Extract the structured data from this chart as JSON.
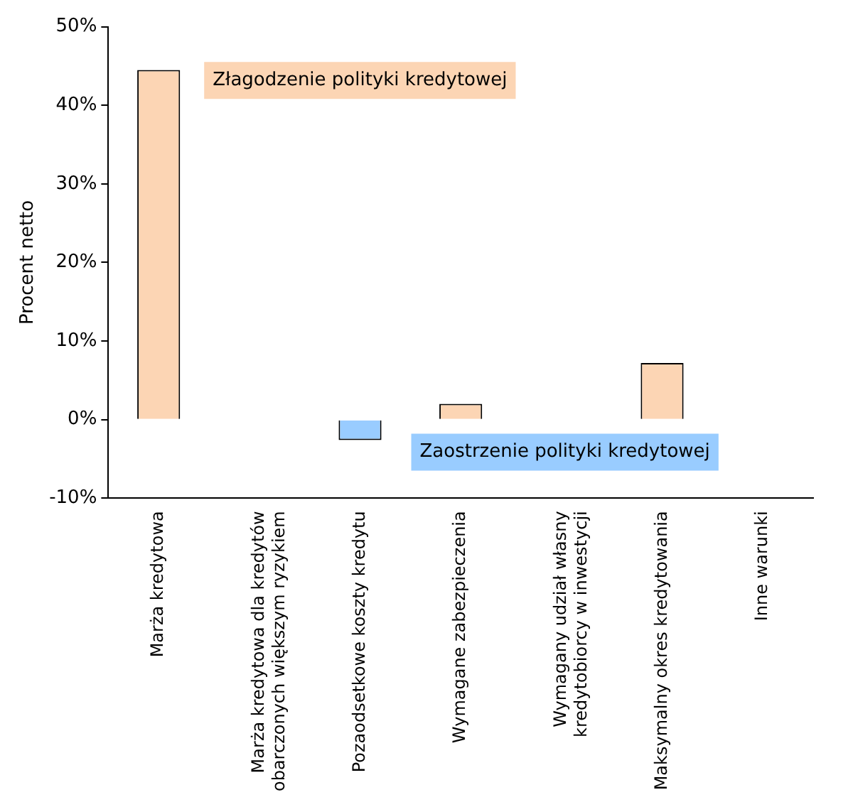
{
  "chart_data": {
    "type": "bar",
    "ylabel": "Procent netto",
    "categories": [
      "Marża kredytowa",
      "Marża kredytowa dla kredytów\nobarczonych większym ryzykiem",
      "Pozaodsetkowe koszty kredytu",
      "Wymagane zabezpieczenia",
      "Wymagany udział własny\nkredytobiorcy w inwestycji",
      "Maksymalny okres kredytowania",
      "Inne warunki"
    ],
    "values": [
      44.5,
      null,
      -2.6,
      2.0,
      null,
      7.2,
      null
    ],
    "colors": [
      "#fcd5b4",
      "#fcd5b4",
      "#99ccff",
      "#fcd5b4",
      "#fcd5b4",
      "#fcd5b4",
      "#fcd5b4"
    ],
    "ylim": [
      -10,
      50
    ],
    "yticks": [
      {
        "value": -10,
        "label": "-10%"
      },
      {
        "value": 0,
        "label": "0%"
      },
      {
        "value": 10,
        "label": "10%"
      },
      {
        "value": 20,
        "label": "20%"
      },
      {
        "value": 30,
        "label": "30%"
      },
      {
        "value": 40,
        "label": "40%"
      },
      {
        "value": 50,
        "label": "50%"
      }
    ],
    "annotations": [
      "Złagodzenie polityki kredytowej",
      "Zaostrzenie polityki kredytowej"
    ],
    "grid": false,
    "legend": false
  }
}
